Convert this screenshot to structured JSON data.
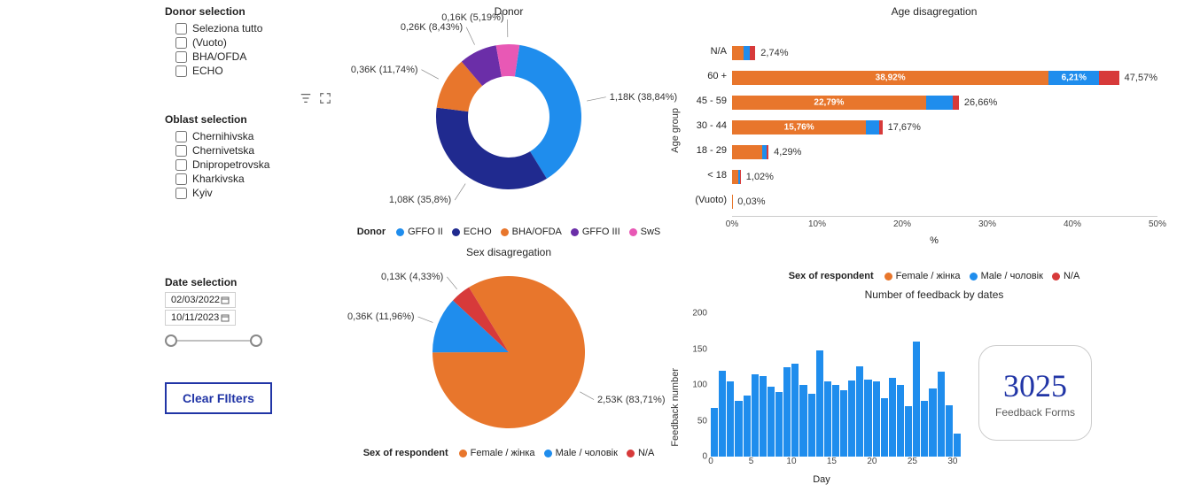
{
  "sidebar": {
    "donor_title": "Donor selection",
    "donor_options": [
      "Seleziona tutto",
      "(Vuoto)",
      "BHA/OFDA",
      "ECHO"
    ],
    "oblast_title": "Oblast selection",
    "oblast_options": [
      "Chernihivska",
      "Chernivetska",
      "Dnipropetrovska",
      "Kharkivska",
      "Kyiv"
    ],
    "date_title": "Date selection",
    "date_from": "02/03/2022",
    "date_to": "10/11/2023",
    "clear_btn": "Clear FIlters"
  },
  "colors": {
    "gffo2": "#1f8ded",
    "echo": "#202a8f",
    "bha": "#e8762c",
    "gffo3": "#6b2ea8",
    "sws": "#e858b5",
    "female": "#e8762c",
    "male": "#1f8ded",
    "na": "#d73a3a",
    "accent": "#2135a6"
  },
  "donor_chart": {
    "title": "Donor",
    "type": "donut",
    "legend_title": "Donor",
    "slices": [
      {
        "key": "gffo2",
        "label": "GFFO II",
        "text": "1,18K (38,84%)",
        "pct": 38.84
      },
      {
        "key": "echo",
        "label": "ECHO",
        "text": "1,08K (35,8%)",
        "pct": 35.8
      },
      {
        "key": "bha",
        "label": "BHA/OFDA",
        "text": "0,36K (11,74%)",
        "pct": 11.74
      },
      {
        "key": "gffo3",
        "label": "GFFO III",
        "text": "0,26K (8,43%)",
        "pct": 8.43
      },
      {
        "key": "sws",
        "label": "SwS",
        "text": "0,16K (5,19%)",
        "pct": 5.19
      }
    ]
  },
  "sex_chart": {
    "title": "Sex disagregation",
    "type": "pie",
    "legend_title": "Sex of respondent",
    "slices": [
      {
        "key": "female",
        "label": "Female / жінка",
        "text": "2,53K (83,71%)",
        "pct": 83.71
      },
      {
        "key": "male",
        "label": "Male / чоловік",
        "text": "0,36K (11,96%)",
        "pct": 11.96
      },
      {
        "key": "na",
        "label": "N/A",
        "text": "0,13K (4,33%)",
        "pct": 4.33
      }
    ]
  },
  "age_chart": {
    "title": "Age disagregation",
    "type": "stacked-bar-h",
    "y_label": "Age group",
    "x_label": "%",
    "xlim": [
      0,
      50
    ],
    "xtick_step": 10,
    "legend_title": "Sex of respondent",
    "legend": [
      {
        "key": "female",
        "label": "Female / жінка"
      },
      {
        "key": "male",
        "label": "Male / чоловік"
      },
      {
        "key": "na",
        "label": "N/A"
      }
    ],
    "rows": [
      {
        "cat": "N/A",
        "total_text": "2,74%",
        "total": 2.74,
        "stacks": [
          {
            "key": "female",
            "v": 1.4
          },
          {
            "key": "male",
            "v": 0.7
          },
          {
            "key": "na",
            "v": 0.64
          }
        ]
      },
      {
        "cat": "60 +",
        "total_text": "47,57%",
        "total": 47.57,
        "stacks": [
          {
            "key": "female",
            "v": 38.92,
            "intext": "38,92%"
          },
          {
            "key": "male",
            "v": 6.21,
            "intext": "6,21%"
          },
          {
            "key": "na",
            "v": 2.44
          }
        ]
      },
      {
        "cat": "45 - 59",
        "total_text": "26,66%",
        "total": 26.66,
        "stacks": [
          {
            "key": "female",
            "v": 22.79,
            "intext": "22,79%"
          },
          {
            "key": "male",
            "v": 3.1
          },
          {
            "key": "na",
            "v": 0.77
          }
        ]
      },
      {
        "cat": "30 - 44",
        "total_text": "17,67%",
        "total": 17.67,
        "stacks": [
          {
            "key": "female",
            "v": 15.76,
            "intext": "15,76%"
          },
          {
            "key": "male",
            "v": 1.5
          },
          {
            "key": "na",
            "v": 0.41
          }
        ]
      },
      {
        "cat": "18 - 29",
        "total_text": "4,29%",
        "total": 4.29,
        "stacks": [
          {
            "key": "female",
            "v": 3.5
          },
          {
            "key": "male",
            "v": 0.6
          },
          {
            "key": "na",
            "v": 0.19
          }
        ]
      },
      {
        "cat": "< 18",
        "total_text": "1,02%",
        "total": 1.02,
        "stacks": [
          {
            "key": "female",
            "v": 0.7
          },
          {
            "key": "male",
            "v": 0.2
          },
          {
            "key": "na",
            "v": 0.12
          }
        ]
      },
      {
        "cat": "(Vuoto)",
        "total_text": "0,03%",
        "total": 0.03,
        "stacks": [
          {
            "key": "female",
            "v": 0.03
          }
        ]
      }
    ]
  },
  "histo": {
    "title": "Number of feedback by dates",
    "type": "histogram",
    "y_label": "Feedback number",
    "x_label": "Day",
    "ylim": [
      0,
      200
    ],
    "yticks": [
      0,
      50,
      100,
      150,
      200
    ],
    "xticks": [
      0,
      5,
      10,
      15,
      20,
      25,
      30
    ],
    "bar_color": "#1f8ded",
    "values": [
      68,
      120,
      105,
      78,
      85,
      115,
      112,
      98,
      90,
      125,
      130,
      100,
      88,
      148,
      105,
      100,
      92,
      106,
      126,
      108,
      105,
      82,
      110,
      100,
      70,
      160,
      78,
      95,
      118,
      72,
      32
    ]
  },
  "kpi": {
    "value": "3025",
    "label": "Feedback Forms"
  }
}
